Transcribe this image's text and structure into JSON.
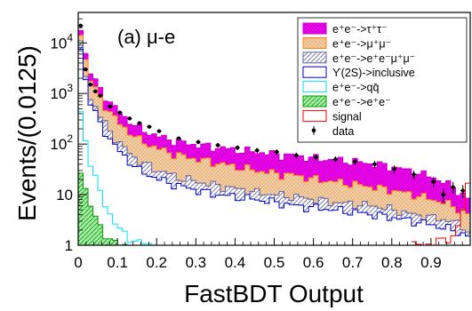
{
  "chart_data": {
    "type": "area",
    "panel_label": "(a) μ-e",
    "xlabel": "FastBDT Output",
    "ylabel": "Events/(0.0125)",
    "xlim": [
      0,
      1
    ],
    "ylim": [
      1,
      40000
    ],
    "log_y": true,
    "bin_width": 0.0125,
    "stacked": true,
    "grid": false,
    "legend_position": "top-right",
    "x_ticks": [
      "0",
      "0.1",
      "0.2",
      "0.3",
      "0.4",
      "0.5",
      "0.6",
      "0.7",
      "0.8",
      "0.9"
    ],
    "x_tick_values": [
      0,
      0.1,
      0.2,
      0.3,
      0.4,
      0.5,
      0.6,
      0.7,
      0.8,
      0.9
    ],
    "y_ticks": [
      "1",
      "10",
      "10^2",
      "10^3",
      "10^4"
    ],
    "y_tick_values": [
      1,
      10,
      100,
      1000,
      10000
    ],
    "series": [
      {
        "name": "e⁺e⁻->τ⁺τ⁻",
        "style": "filled",
        "fill": "#ff00ff",
        "edge": "#cc00cc",
        "pattern": "cross-hatch",
        "x": [
          0.0,
          0.02,
          0.05,
          0.08,
          0.1,
          0.15,
          0.2,
          0.25,
          0.3,
          0.35,
          0.4,
          0.45,
          0.5,
          0.55,
          0.6,
          0.65,
          0.7,
          0.75,
          0.8,
          0.85,
          0.9,
          0.95,
          0.99
        ],
        "values": [
          20000,
          3000,
          1200,
          600,
          400,
          200,
          140,
          110,
          95,
          85,
          75,
          70,
          62,
          58,
          52,
          48,
          45,
          40,
          35,
          28,
          22,
          14,
          8
        ]
      },
      {
        "name": "e⁺e⁻->μ⁺μ⁻",
        "style": "filled",
        "fill": "#f0c8a0",
        "edge": "#ff8000",
        "pattern": "dots",
        "x": [
          0.0,
          0.02,
          0.05,
          0.08,
          0.1,
          0.15,
          0.2,
          0.25,
          0.3,
          0.35,
          0.4,
          0.45,
          0.5,
          0.55,
          0.6,
          0.65,
          0.7,
          0.75,
          0.8,
          0.85,
          0.9,
          0.95,
          0.99
        ],
        "values": [
          16000,
          2200,
          800,
          380,
          250,
          120,
          80,
          60,
          50,
          42,
          35,
          30,
          26,
          24,
          20,
          18,
          16,
          14,
          12,
          10,
          8,
          6,
          4
        ]
      },
      {
        "name": "e⁺e⁻->e⁺e⁻μ⁺μ⁻",
        "style": "filled",
        "fill": "#c8c8e8",
        "edge": "#6060a0",
        "pattern": "diagonal",
        "x": [
          0.0,
          0.02,
          0.05,
          0.08,
          0.1,
          0.15,
          0.2,
          0.25,
          0.3,
          0.35,
          0.4,
          0.45,
          0.5,
          0.55,
          0.6,
          0.65,
          0.7,
          0.75,
          0.8,
          0.85,
          0.9,
          0.95,
          0.99
        ],
        "values": [
          9000,
          1000,
          350,
          160,
          100,
          45,
          30,
          22,
          18,
          15,
          13,
          11,
          10,
          9,
          8,
          7,
          6.5,
          6,
          5,
          4,
          3.5,
          3,
          2
        ]
      },
      {
        "name": "ϒ(2S)->inclusive",
        "style": "outline",
        "fill": "#ffffff",
        "edge": "#0000cc",
        "x": [
          0.0,
          0.02,
          0.05,
          0.08,
          0.1,
          0.15,
          0.2,
          0.25,
          0.3,
          0.35,
          0.4,
          0.45,
          0.5,
          0.55,
          0.6,
          0.65,
          0.7,
          0.75,
          0.8,
          0.85,
          0.9,
          0.95,
          0.99
        ],
        "values": [
          8000,
          800,
          250,
          110,
          70,
          30,
          20,
          15,
          12,
          10,
          9,
          8,
          7,
          6,
          5.5,
          5,
          4.5,
          4,
          3.5,
          3,
          2.5,
          2,
          1.5
        ]
      },
      {
        "name": "e⁺e⁻->qq̄",
        "style": "outline",
        "fill": "none",
        "edge": "#00e0ff",
        "x": [
          0.0,
          0.02,
          0.04,
          0.06,
          0.08,
          0.1,
          0.12,
          0.14,
          0.16,
          0.18
        ],
        "values": [
          400,
          60,
          18,
          7,
          3.5,
          2,
          1.5,
          1.2,
          1.1,
          1.0
        ]
      },
      {
        "name": "e⁺e⁻->e⁺e⁻",
        "style": "filled",
        "fill": "#80e080",
        "edge": "#00a000",
        "pattern": "diagonal",
        "x": [
          0.0,
          0.02,
          0.04,
          0.06,
          0.08,
          0.1
        ],
        "values": [
          30,
          8,
          3,
          1.8,
          1.2,
          1.0
        ]
      },
      {
        "name": "signal",
        "style": "outline",
        "fill": "none",
        "edge": "#ff0000",
        "x": [
          0.85,
          0.9,
          0.95,
          0.97,
          0.99,
          1.0
        ],
        "values": [
          1.0,
          1.1,
          1.5,
          3.0,
          20,
          200
        ]
      },
      {
        "name": "data",
        "style": "markers",
        "marker": "circle-errorbar",
        "color": "#000000",
        "x": [
          0.0,
          0.0125,
          0.025,
          0.0375,
          0.05,
          0.075,
          0.1,
          0.125,
          0.15,
          0.175,
          0.2,
          0.25,
          0.3,
          0.35,
          0.4,
          0.45,
          0.5,
          0.55,
          0.6,
          0.65,
          0.7,
          0.75,
          0.8,
          0.85,
          0.9,
          0.925,
          0.95,
          0.975
        ],
        "values": [
          22000,
          3000,
          1500,
          1100,
          900,
          550,
          420,
          320,
          260,
          220,
          180,
          130,
          110,
          95,
          85,
          75,
          70,
          60,
          55,
          50,
          45,
          40,
          32,
          25,
          18,
          10,
          14,
          12
        ]
      }
    ]
  }
}
